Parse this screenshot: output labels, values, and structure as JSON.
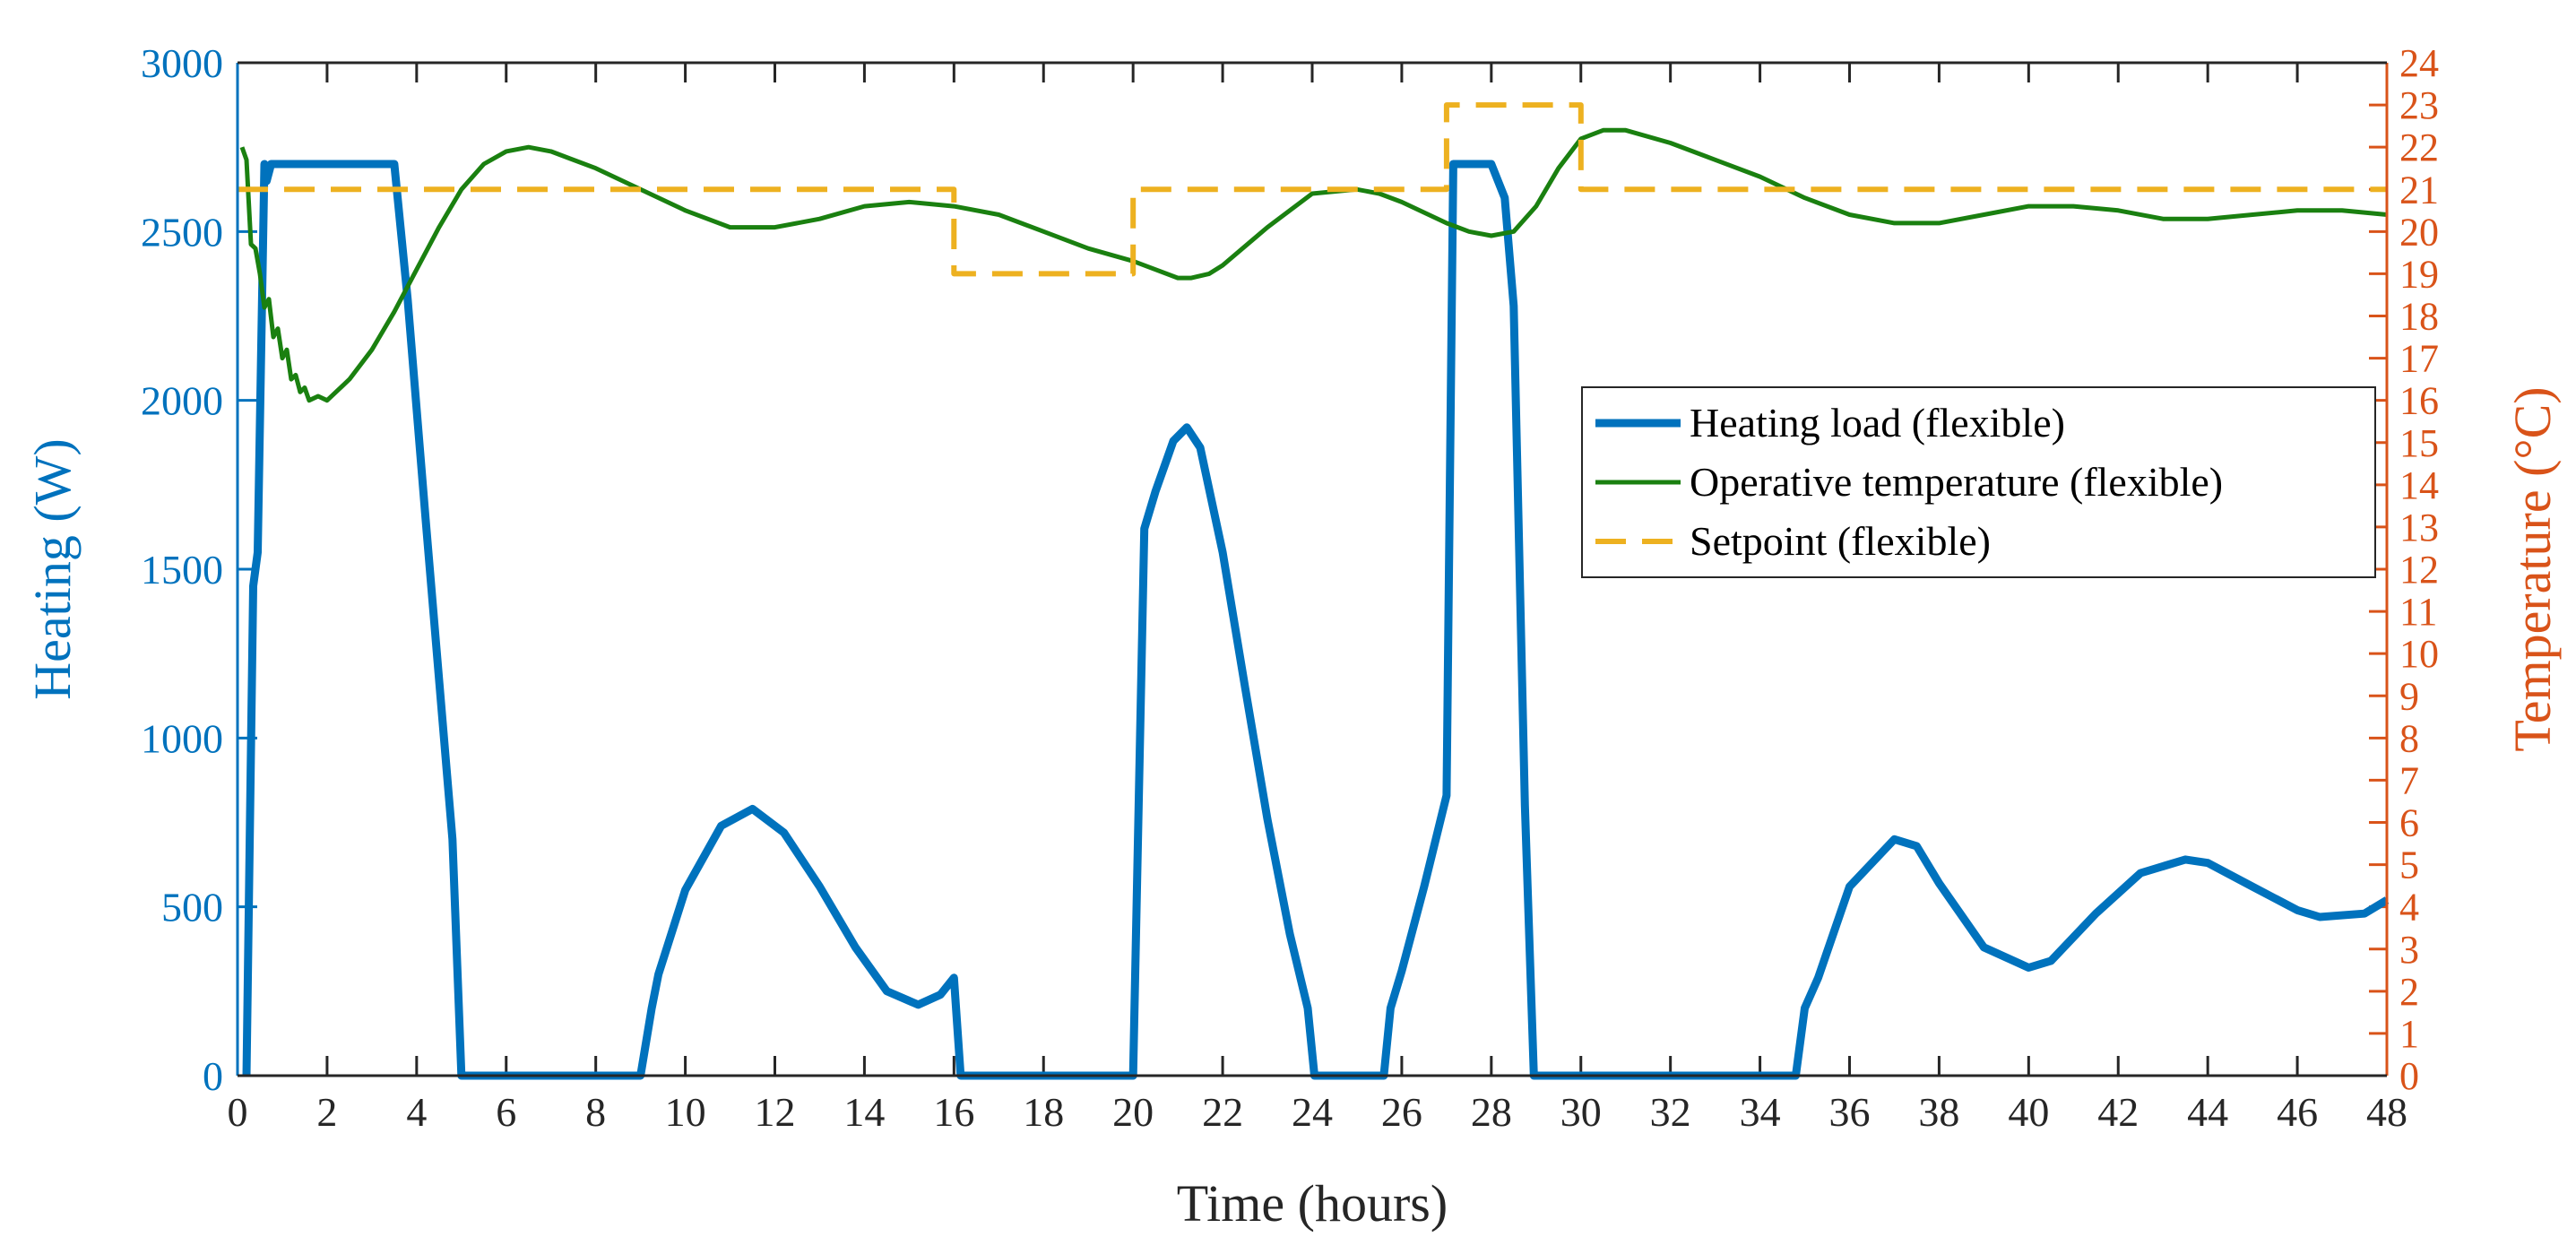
{
  "chart_data": {
    "type": "line",
    "title": "",
    "xlabel": "Time (hours)",
    "ylabel_left": "Heating (W)",
    "ylabel_right": "Temperature (°C)",
    "xlim": [
      0,
      48
    ],
    "ylim_left": [
      0,
      3000
    ],
    "ylim_right": [
      0,
      24
    ],
    "x_ticks": [
      0,
      2,
      4,
      6,
      8,
      10,
      12,
      14,
      16,
      18,
      20,
      22,
      24,
      26,
      28,
      30,
      32,
      34,
      36,
      38,
      40,
      42,
      44,
      46,
      48
    ],
    "y_left_ticks": [
      0,
      500,
      1000,
      1500,
      2000,
      2500,
      3000
    ],
    "y_right_ticks": [
      0,
      1,
      2,
      3,
      4,
      5,
      6,
      7,
      8,
      9,
      10,
      11,
      12,
      13,
      14,
      15,
      16,
      17,
      18,
      19,
      20,
      21,
      22,
      23,
      24
    ],
    "grid": false,
    "legend_position": "center-right",
    "colors": {
      "heating": "#0072BD",
      "operative": "#1A8010",
      "setpoint": "#EDB120",
      "right_axis": "#D95319",
      "axis": "#262626"
    },
    "series": [
      {
        "name": "Heating load (flexible)",
        "axis": "left",
        "style": "solid",
        "x": [
          0.2,
          0.35,
          0.45,
          0.6,
          0.65,
          0.75,
          0.9,
          1.5,
          2.5,
          3.4,
          3.5,
          3.8,
          4.2,
          4.8,
          5.0,
          9.0,
          9.25,
          9.4,
          10.0,
          10.8,
          11.5,
          12.2,
          13.0,
          13.8,
          14.5,
          15.2,
          15.7,
          16.0,
          16.15,
          16.25,
          20.0,
          20.25,
          20.5,
          20.9,
          21.2,
          21.5,
          22.0,
          22.5,
          23.0,
          23.5,
          23.9,
          24.05,
          25.6,
          25.75,
          26.0,
          26.5,
          27.0,
          27.15,
          27.5,
          28.0,
          28.3,
          28.5,
          28.75,
          28.95,
          29.5,
          34.8,
          35.0,
          35.3,
          36.0,
          37.0,
          37.5,
          38.0,
          39.0,
          40.0,
          40.5,
          41.5,
          42.5,
          43.5,
          44.0,
          45.0,
          46.0,
          46.5,
          47.5,
          48.0
        ],
        "y": [
          0,
          1450,
          1550,
          2700,
          2650,
          2700,
          2700,
          2700,
          2700,
          2700,
          2700,
          2300,
          1650,
          700,
          0,
          0,
          200,
          300,
          550,
          740,
          790,
          720,
          560,
          380,
          250,
          210,
          240,
          290,
          0,
          0,
          0,
          1620,
          1730,
          1880,
          1920,
          1860,
          1550,
          1150,
          760,
          420,
          200,
          0,
          0,
          200,
          310,
          560,
          830,
          2700,
          2700,
          2700,
          2600,
          2280,
          800,
          0,
          0,
          0,
          200,
          290,
          560,
          700,
          680,
          570,
          380,
          320,
          340,
          480,
          600,
          640,
          630,
          560,
          490,
          470,
          480,
          520
        ]
      },
      {
        "name": "Operative temperature (flexible)",
        "axis": "right",
        "style": "solid",
        "x": [
          0.1,
          0.2,
          0.3,
          0.4,
          0.5,
          0.6,
          0.7,
          0.8,
          0.9,
          1.0,
          1.1,
          1.2,
          1.3,
          1.4,
          1.5,
          1.6,
          1.8,
          2.0,
          2.5,
          3.0,
          3.5,
          4.0,
          4.5,
          5.0,
          5.5,
          6.0,
          6.5,
          7.0,
          8.0,
          9.0,
          10.0,
          11.0,
          11.5,
          12.0,
          13.0,
          14.0,
          15.0,
          16.0,
          17.0,
          18.0,
          19.0,
          20.0,
          20.5,
          21.0,
          21.3,
          21.7,
          22.0,
          23.0,
          24.0,
          25.0,
          25.5,
          26.0,
          27.0,
          27.5,
          28.0,
          28.5,
          29.0,
          29.5,
          30.0,
          30.5,
          31.0,
          32.0,
          33.0,
          34.0,
          35.0,
          36.0,
          37.0,
          38.0,
          39.0,
          40.0,
          41.0,
          42.0,
          43.0,
          44.0,
          45.0,
          46.0,
          47.0,
          48.0
        ],
        "y": [
          22.0,
          21.7,
          19.7,
          19.6,
          19.0,
          18.2,
          18.4,
          17.5,
          17.7,
          17.0,
          17.2,
          16.5,
          16.6,
          16.2,
          16.3,
          16.0,
          16.1,
          16.0,
          16.5,
          17.2,
          18.1,
          19.1,
          20.1,
          21.0,
          21.6,
          21.9,
          22.0,
          21.9,
          21.5,
          21.0,
          20.5,
          20.1,
          20.1,
          20.1,
          20.3,
          20.6,
          20.7,
          20.6,
          20.4,
          20.0,
          19.6,
          19.3,
          19.1,
          18.9,
          18.9,
          19.0,
          19.2,
          20.1,
          20.9,
          21.0,
          20.9,
          20.7,
          20.2,
          20.0,
          19.9,
          20.0,
          20.6,
          21.5,
          22.2,
          22.4,
          22.4,
          22.1,
          21.7,
          21.3,
          20.8,
          20.4,
          20.2,
          20.2,
          20.4,
          20.6,
          20.6,
          20.5,
          20.3,
          20.3,
          20.4,
          20.5,
          20.5,
          20.4
        ]
      },
      {
        "name": "Setpoint (flexible)",
        "axis": "right",
        "style": "dashed",
        "x": [
          0.0,
          16.0,
          16.0,
          20.0,
          20.0,
          27.0,
          27.0,
          30.0,
          30.0,
          48.0
        ],
        "y": [
          21,
          21,
          19,
          19,
          21,
          21,
          23,
          23,
          21,
          21
        ]
      }
    ]
  }
}
